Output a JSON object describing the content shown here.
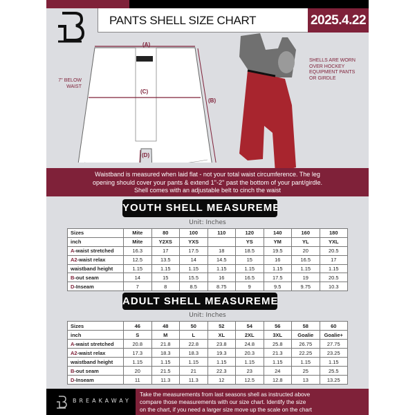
{
  "header": {
    "title": "PANTS SHELL SIZE CHART",
    "date": "2025.4.22",
    "logo": "B"
  },
  "diagram": {
    "label_a": "(A)",
    "label_b": "(B)",
    "label_c": "(C)",
    "label_d": "(D)",
    "below_waist": [
      "7'' BELOW",
      "WAIST"
    ],
    "note": [
      "SHELLS ARE WORN",
      "OVER HOCKEY",
      "EQUIPMENT PANTS",
      "OR GIRDLE"
    ]
  },
  "info_band": [
    "Waistband is measured when laid flat - not your total waist circumference. The leg",
    "opening should cover your pants & extend 1''-2'' past the bottom of your pant/girdle.",
    "Shell comes with an adjustable belt to cinch the waist"
  ],
  "youth": {
    "heading": "YOUTH SHELL MEASUREMENTS",
    "unit": "Unit: Inches",
    "rows": [
      {
        "mark": "",
        "label": "Sizes",
        "values": [
          "Mite",
          "80",
          "100",
          "110",
          "120",
          "140",
          "160",
          "180"
        ]
      },
      {
        "mark": "",
        "label": "inch",
        "values": [
          "Mite",
          "Y2XS",
          "YXS",
          "",
          "YS",
          "YM",
          "YL",
          "YXL"
        ]
      },
      {
        "mark": "A",
        "label": "-waist stretched",
        "values": [
          "16.3",
          "17",
          "17.5",
          "18",
          "18.5",
          "19.5",
          "20",
          "20.5"
        ]
      },
      {
        "mark": "A2",
        "label": "-waist relax",
        "values": [
          "12.5",
          "13.5",
          "14",
          "14.5",
          "15",
          "16",
          "16.5",
          "17"
        ]
      },
      {
        "mark": "",
        "label": "waistband height",
        "values": [
          "1.15",
          "1.15",
          "1.15",
          "1.15",
          "1.15",
          "1.15",
          "1.15",
          "1.15"
        ]
      },
      {
        "mark": "B",
        "label": "-out seam",
        "values": [
          "14",
          "15",
          "15.5",
          "16",
          "16.5",
          "17.5",
          "19",
          "20.5"
        ]
      },
      {
        "mark": "D",
        "label": "-Inseam",
        "values": [
          "7",
          "8",
          "8.5",
          "8.75",
          "9",
          "9.5",
          "9.75",
          "10.3"
        ]
      }
    ]
  },
  "adult": {
    "heading": "ADULT SHELL MEASUREMENTS",
    "unit": "Unit: Inches",
    "rows": [
      {
        "mark": "",
        "label": "Sizes",
        "values": [
          "46",
          "48",
          "50",
          "52",
          "54",
          "56",
          "58",
          "60"
        ]
      },
      {
        "mark": "",
        "label": "inch",
        "values": [
          "S",
          "M",
          "L",
          "XL",
          "2XL",
          "3XL",
          "Goalie",
          "Goalie+"
        ]
      },
      {
        "mark": "A",
        "label": "-waist stretched",
        "values": [
          "20.8",
          "21.8",
          "22.8",
          "23.8",
          "24.8",
          "25.8",
          "26.75",
          "27.75"
        ]
      },
      {
        "mark": "A2",
        "label": "-waist relax",
        "values": [
          "17.3",
          "18.3",
          "18.3",
          "19.3",
          "20.3",
          "21.3",
          "22.25",
          "23.25"
        ]
      },
      {
        "mark": "",
        "label": "waistband height",
        "values": [
          "1.15",
          "1.15",
          "1.15",
          "1.15",
          "1.15",
          "1.15",
          "1.15",
          "1.15"
        ]
      },
      {
        "mark": "B",
        "label": "-out seam",
        "values": [
          "20",
          "21.5",
          "21",
          "22.3",
          "23",
          "24",
          "25",
          "25.5"
        ]
      },
      {
        "mark": "D",
        "label": "-Inseam",
        "values": [
          "11",
          "11.3",
          "11.3",
          "12",
          "12.5",
          "12.8",
          "13",
          "13.25"
        ]
      }
    ]
  },
  "footer": {
    "brand": "BREAKAWAY",
    "text": [
      "Take the measurements from last seasons shell as instructed above",
      "compare those measurements  with our size chart. Identify the size",
      "on the chart, if you need a larger size move up the scale on the chart"
    ]
  },
  "colors": {
    "maroon": "#7f2139",
    "black": "#000000",
    "background": "#dcdde1"
  }
}
